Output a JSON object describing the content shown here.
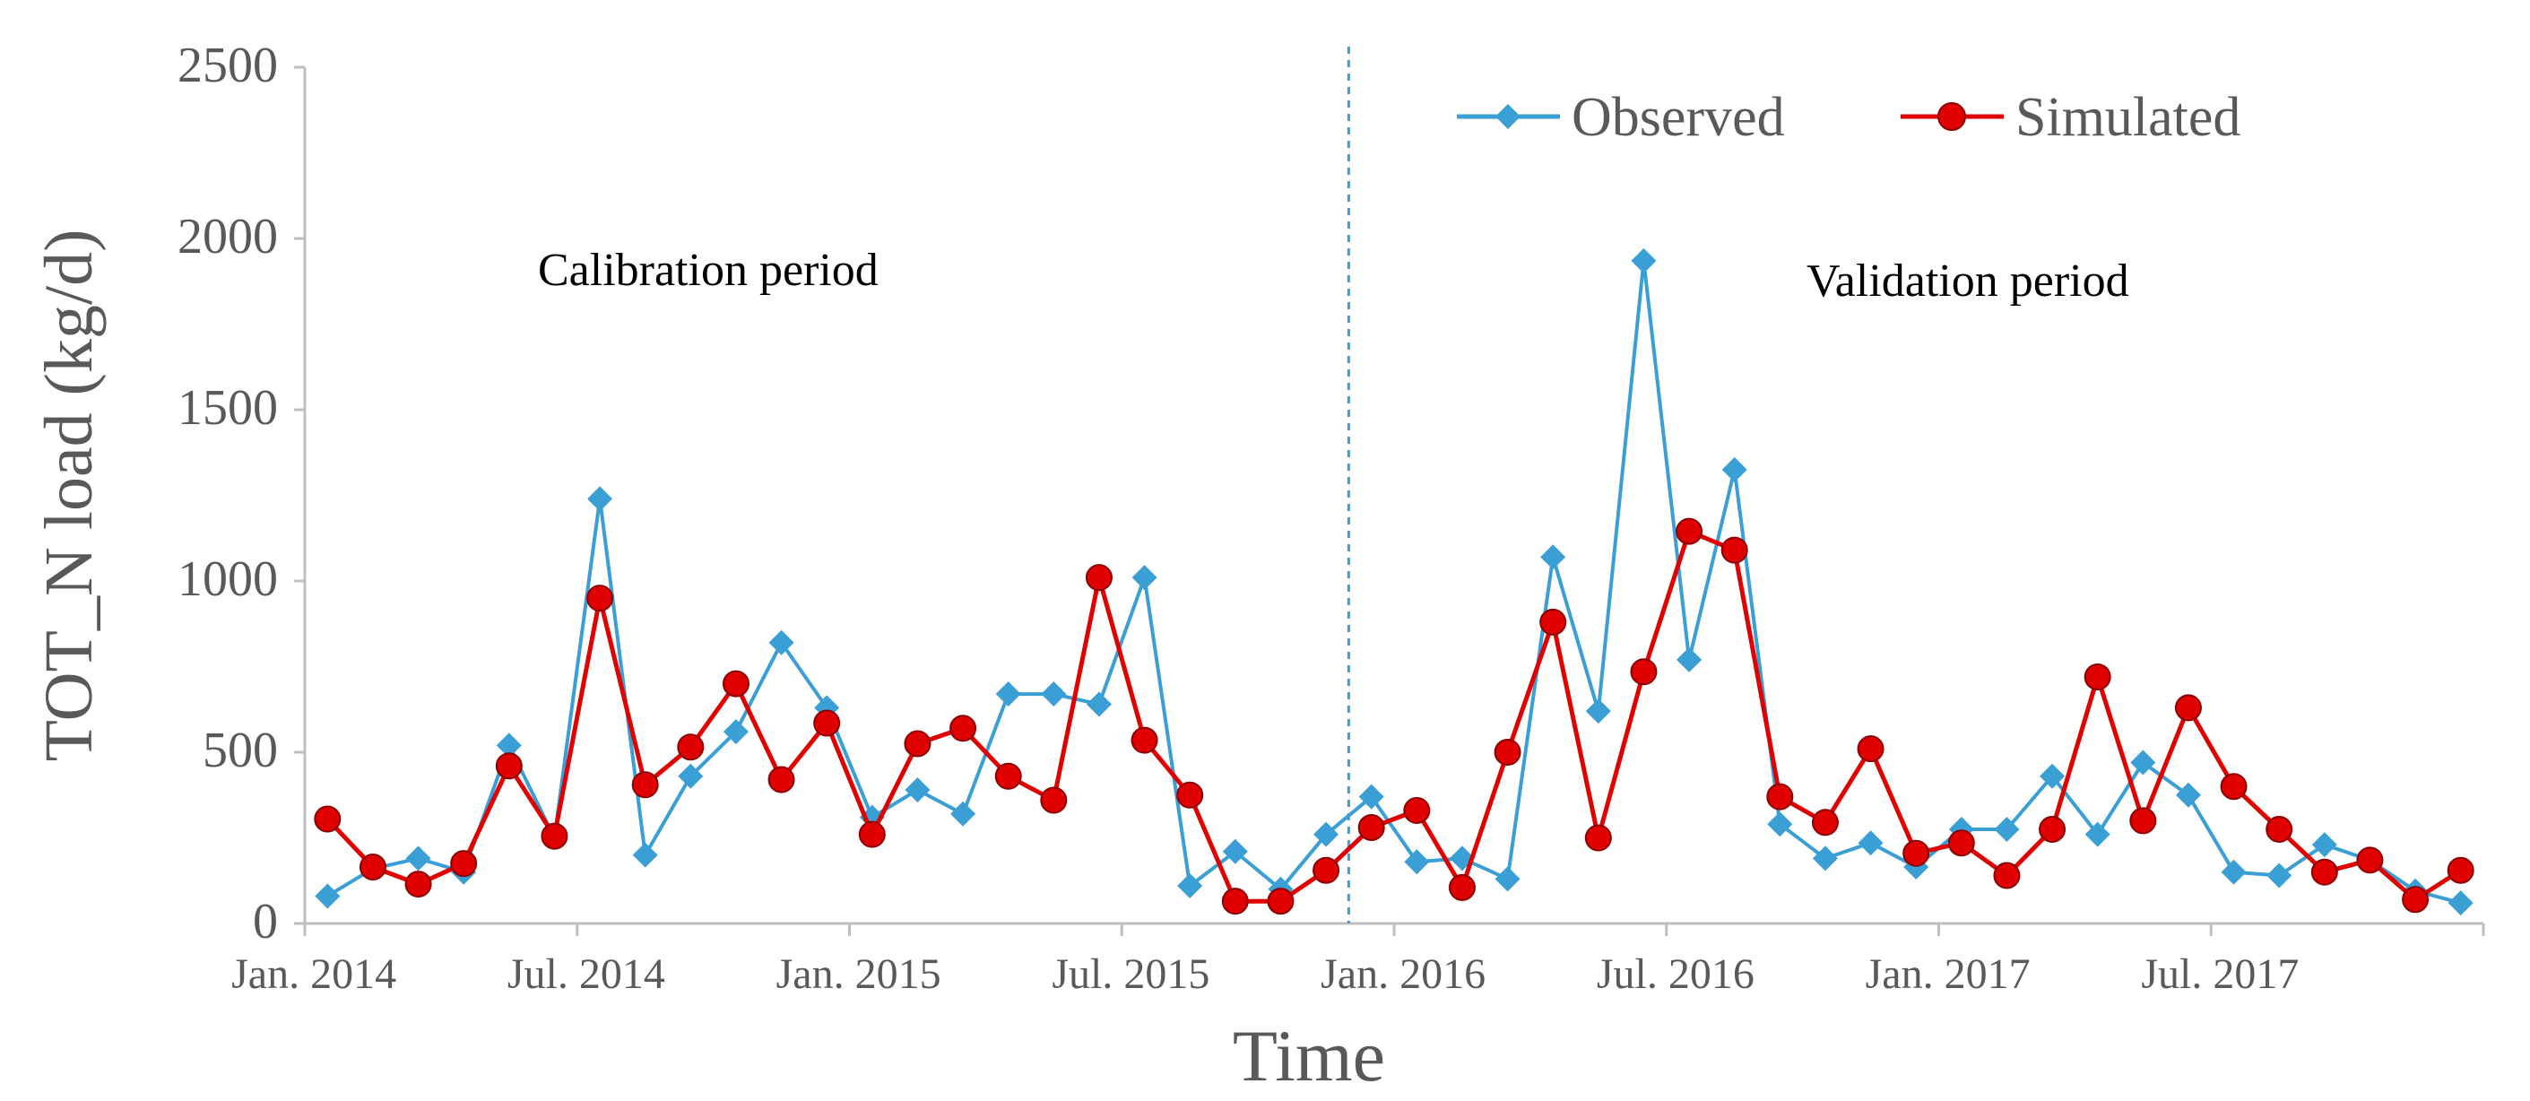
{
  "chart_data": {
    "type": "line",
    "title": "",
    "xlabel": "Time",
    "ylabel": "TOT_N load (kg/d)",
    "ylim": [
      0,
      2500
    ],
    "yticks": [
      0,
      500,
      1000,
      1500,
      2000,
      2500
    ],
    "x_count": 48,
    "x_tick_labels": [
      {
        "index": 0,
        "label": "Jan. 2014"
      },
      {
        "index": 6,
        "label": "Jul. 2014"
      },
      {
        "index": 12,
        "label": "Jan. 2015"
      },
      {
        "index": 18,
        "label": "Jul. 2015"
      },
      {
        "index": 24,
        "label": "Jan. 2016"
      },
      {
        "index": 30,
        "label": "Jul. 2016"
      },
      {
        "index": 36,
        "label": "Jan. 2017"
      },
      {
        "index": 42,
        "label": "Jul. 2017"
      }
    ],
    "split_after_index": 22.5,
    "annotations": {
      "calibration": "Calibration period",
      "validation": "Validation period"
    },
    "series": [
      {
        "name": "Observed",
        "color": "#3a9fd5",
        "marker": "diamond",
        "values": [
          80,
          160,
          190,
          150,
          520,
          250,
          1240,
          200,
          430,
          560,
          820,
          630,
          310,
          390,
          320,
          670,
          670,
          640,
          1010,
          110,
          210,
          100,
          260,
          370,
          180,
          190,
          130,
          1070,
          620,
          1935,
          770,
          1325,
          290,
          190,
          235,
          165,
          275,
          275,
          430,
          260,
          470,
          375,
          150,
          140,
          230,
          185,
          95,
          60
        ]
      },
      {
        "name": "Simulated",
        "color": "#e00000",
        "marker": "circle",
        "values": [
          305,
          165,
          115,
          175,
          460,
          255,
          950,
          405,
          515,
          700,
          420,
          585,
          260,
          525,
          570,
          430,
          360,
          1010,
          535,
          375,
          65,
          65,
          155,
          280,
          330,
          105,
          500,
          880,
          250,
          735,
          1145,
          1090,
          370,
          295,
          510,
          205,
          235,
          140,
          275,
          720,
          300,
          630,
          400,
          275,
          150,
          185,
          70,
          155
        ]
      }
    ]
  }
}
